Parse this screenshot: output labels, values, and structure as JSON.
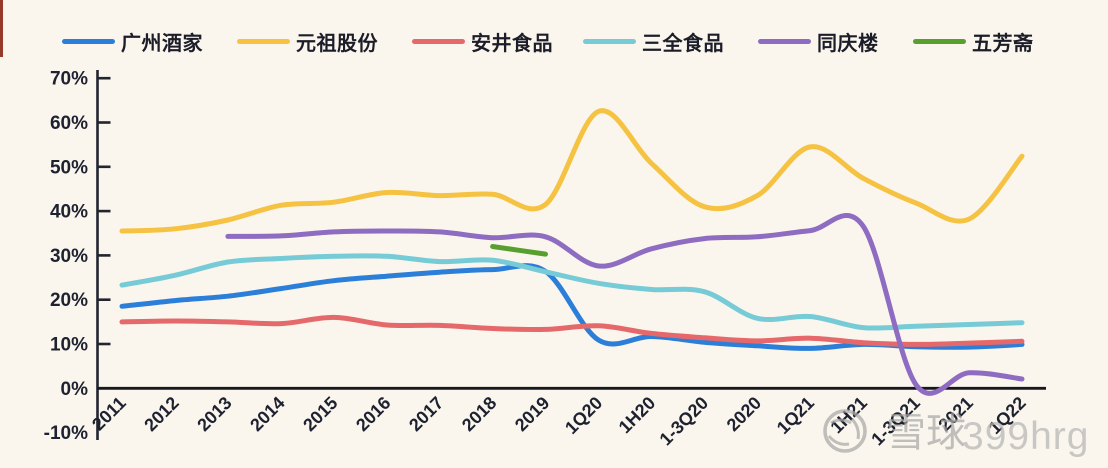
{
  "page": {
    "background": "#FAF6ED",
    "text_color": "#1E2130",
    "axis_color": "#22242F",
    "edge_artifact_color": "#96392B"
  },
  "legend": {
    "items": [
      {
        "label": "广州酒家",
        "color": "#2B7FD9"
      },
      {
        "label": "元祖股份",
        "color": "#F5C242"
      },
      {
        "label": "安井食品",
        "color": "#E5696A"
      },
      {
        "label": "三全食品",
        "color": "#76CBD6"
      },
      {
        "label": "同庆楼",
        "color": "#8E6CC1"
      },
      {
        "label": "五芳斋",
        "color": "#57A030"
      }
    ]
  },
  "chart_data": {
    "type": "line",
    "title": "",
    "xlabel": "",
    "ylabel": "",
    "unit": "%",
    "grid": false,
    "legend_position": "top",
    "ylim": [
      -10,
      70
    ],
    "y_ticks": [
      {
        "label": "70%",
        "value": 70
      },
      {
        "label": "60%",
        "value": 60
      },
      {
        "label": "50%",
        "value": 50
      },
      {
        "label": "40%",
        "value": 40
      },
      {
        "label": "30%",
        "value": 30
      },
      {
        "label": "20%",
        "value": 20
      },
      {
        "label": "10%",
        "value": 10
      },
      {
        "label": "0%",
        "value": 0
      },
      {
        "label": "-10%",
        "value": -10
      }
    ],
    "categories": [
      "2011",
      "2012",
      "2013",
      "2014",
      "2015",
      "2016",
      "2017",
      "2018",
      "2019",
      "1Q20",
      "1H20",
      "1-3Q20",
      "2020",
      "1Q21",
      "1H21",
      "1-3Q21",
      "2021",
      "1Q22"
    ],
    "series": [
      {
        "name": "广州酒家",
        "color": "#2B7FD9",
        "values": [
          18.5,
          19.8,
          20.8,
          22.5,
          24.3,
          25.3,
          26.2,
          26.8,
          26.4,
          10.9,
          11.7,
          10.4,
          9.6,
          9.0,
          9.9,
          9.4,
          9.3,
          9.9
        ]
      },
      {
        "name": "元祖股份",
        "color": "#F5C242",
        "values": [
          35.5,
          36.0,
          38.0,
          41.3,
          42.0,
          44.2,
          43.5,
          43.8,
          41.5,
          62.5,
          50.8,
          41.0,
          43.5,
          54.5,
          47.4,
          41.8,
          38.2,
          52.4
        ]
      },
      {
        "name": "安井食品",
        "color": "#E5696A",
        "values": [
          15.0,
          15.2,
          15.0,
          14.6,
          16.0,
          14.3,
          14.2,
          13.5,
          13.3,
          14.1,
          12.4,
          11.4,
          10.7,
          11.3,
          10.3,
          9.9,
          10.2,
          10.6
        ]
      },
      {
        "name": "三全食品",
        "color": "#76CBD6",
        "values": [
          23.3,
          25.5,
          28.5,
          29.3,
          29.8,
          29.8,
          28.6,
          28.9,
          26.3,
          23.7,
          22.3,
          21.8,
          15.8,
          16.2,
          13.7,
          14.0,
          14.4,
          14.8
        ]
      },
      {
        "name": "同庆楼",
        "color": "#8E6CC1",
        "values": [
          null,
          null,
          34.3,
          34.4,
          35.3,
          35.5,
          35.3,
          34.0,
          34.2,
          27.6,
          31.5,
          33.8,
          34.2,
          35.6,
          36.6,
          0.8,
          3.5,
          2.1
        ]
      },
      {
        "name": "五芳斋",
        "color": "#57A030",
        "values": [
          null,
          null,
          null,
          null,
          null,
          null,
          null,
          32.0,
          30.3,
          null,
          null,
          null,
          null,
          null,
          null,
          null,
          null,
          null
        ]
      }
    ]
  },
  "watermark": {
    "logo": "snowball-logo",
    "site": "雪球",
    "user_id": "399hrg",
    "color": "#A9A9A9"
  }
}
